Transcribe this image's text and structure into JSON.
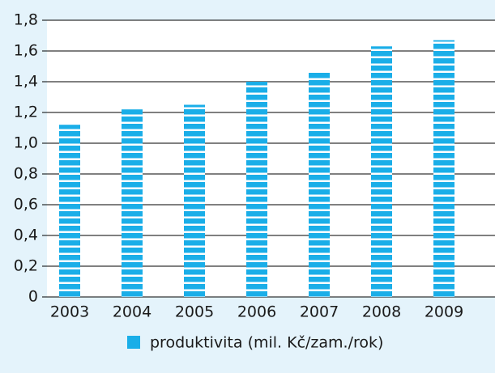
{
  "chart_data": {
    "type": "bar",
    "categories": [
      "2003",
      "2004",
      "2005",
      "2006",
      "2007",
      "2008",
      "2009"
    ],
    "series": [
      {
        "name": "produktivita (mil. Kč/zam./rok)",
        "color": "#1aaee8",
        "values": [
          1.12,
          1.22,
          1.25,
          1.4,
          1.46,
          1.63,
          1.67
        ]
      }
    ],
    "ylim": [
      0,
      1.8
    ],
    "yticks": [
      0,
      {
        "value": 0.2,
        "label": "0,2"
      },
      {
        "value": 0.4,
        "label": "0,4"
      },
      {
        "value": 0.6,
        "label": "0,6"
      },
      {
        "value": 0.8,
        "label": "0,8"
      },
      {
        "value": 1.0,
        "label": "1,0"
      },
      {
        "value": 1.2,
        "label": "1,2"
      },
      {
        "value": 1.4,
        "label": "1,4"
      },
      {
        "value": 1.6,
        "label": "1,6"
      },
      {
        "value": 1.8,
        "label": "1,8"
      }
    ],
    "grid": true,
    "legend": "bottom"
  }
}
